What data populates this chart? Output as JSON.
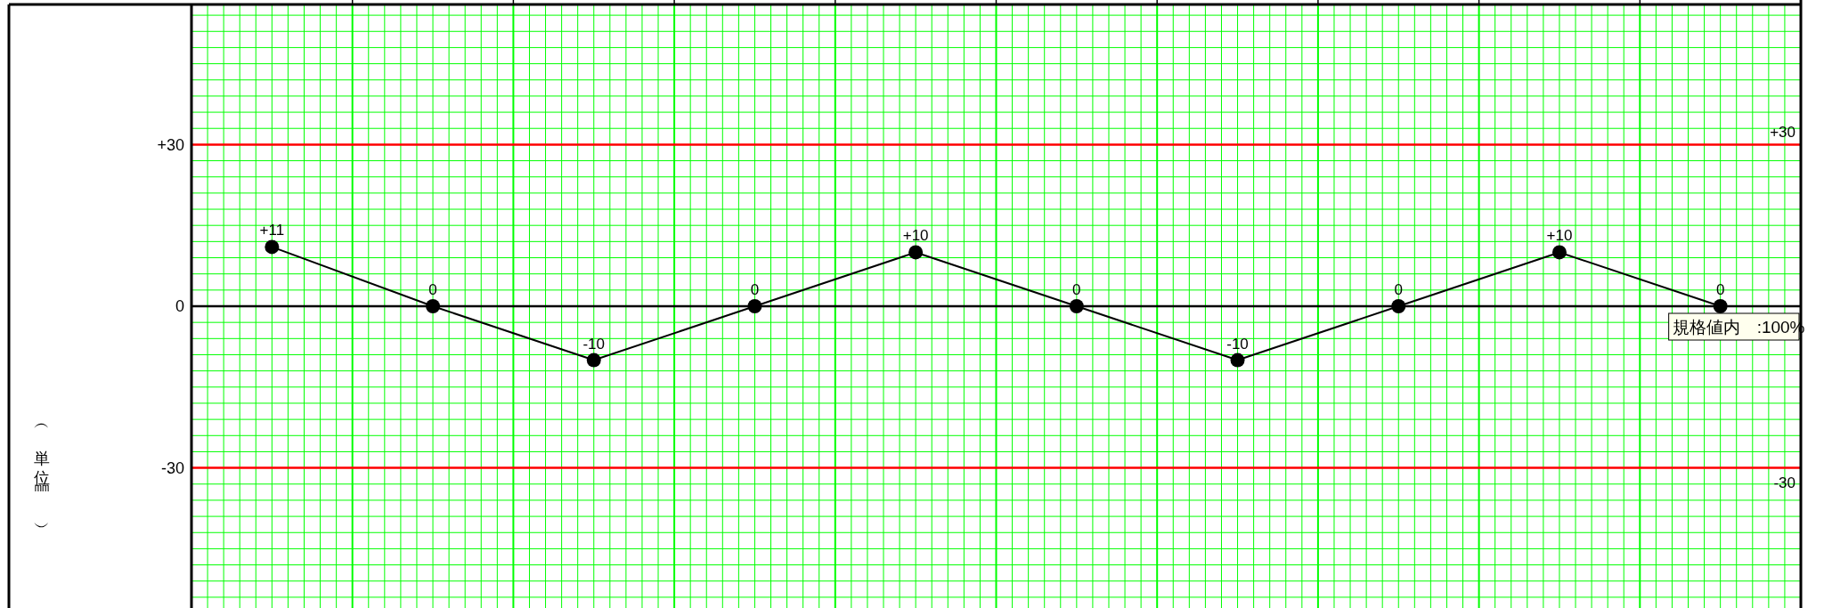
{
  "chart_data": {
    "type": "line",
    "categories": [
      null,
      null,
      null,
      null,
      null,
      null,
      null,
      null,
      null,
      null
    ],
    "series": [
      {
        "color": "#000000",
        "values": [
          11,
          0,
          -10,
          0,
          10,
          0,
          -10,
          0,
          10,
          0
        ],
        "value_labels": [
          "+11",
          "0",
          "-10",
          "0",
          "+10",
          "0",
          "-10",
          "0",
          "+10",
          "0"
        ]
      }
    ],
    "ylim": [
      -56,
      56
    ],
    "yticks": [
      {
        "value": -30,
        "label": "-30"
      },
      0,
      {
        "value": 30,
        "label": "+30"
      }
    ],
    "ref_lines": [
      {
        "axis": "y",
        "value": 30,
        "label": "+30",
        "color": "#ff0000"
      },
      {
        "axis": "y",
        "value": -30,
        "label": "-30",
        "color": "#ff0000"
      },
      {
        "axis": "y",
        "value": 0,
        "color": "#000000"
      }
    ],
    "annotations": [
      "（単位㎜）",
      "規格値内　:100%"
    ],
    "grid": true,
    "marker": "circle"
  }
}
